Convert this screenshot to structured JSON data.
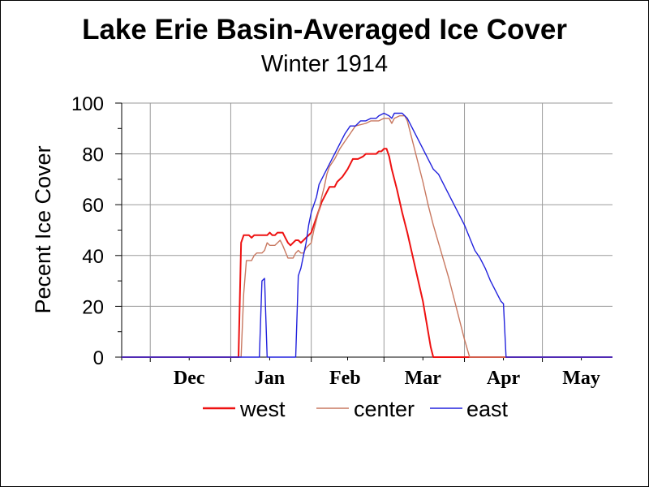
{
  "chart_data": {
    "type": "line",
    "title": "Lake Erie Basin-Averaged Ice Cover",
    "subtitle": "Winter 1914",
    "ylabel": "Pecent Ice Cover",
    "xlabel": "",
    "x_unit": "day",
    "x_range": [
      "Nov 20",
      "May 28"
    ],
    "ylim": [
      0,
      100
    ],
    "yticks": [
      "0",
      "20",
      "40",
      "60",
      "80",
      "100"
    ],
    "xtick_labels": [
      "Dec",
      "Jan",
      "Feb",
      "Mar",
      "Apr",
      "May"
    ],
    "grid": true,
    "legend_position": "bottom",
    "series": [
      {
        "name": "west",
        "color": "#ee1111",
        "points": [
          [
            "Nov 20",
            0
          ],
          [
            "Jan 4",
            0
          ],
          [
            "Jan 5",
            45
          ],
          [
            "Jan 6",
            48
          ],
          [
            "Jan 8",
            48
          ],
          [
            "Jan 9",
            47
          ],
          [
            "Jan 10",
            48
          ],
          [
            "Jan 15",
            48
          ],
          [
            "Jan 16",
            49
          ],
          [
            "Jan 17",
            48
          ],
          [
            "Jan 18",
            48
          ],
          [
            "Jan 19",
            49
          ],
          [
            "Jan 21",
            49
          ],
          [
            "Jan 22",
            47
          ],
          [
            "Jan 23",
            45
          ],
          [
            "Jan 24",
            44
          ],
          [
            "Jan 25",
            45
          ],
          [
            "Jan 26",
            46
          ],
          [
            "Jan 27",
            46
          ],
          [
            "Jan 28",
            45
          ],
          [
            "Jan 29",
            46
          ],
          [
            "Jan 30",
            47
          ],
          [
            "Jan 31",
            48
          ],
          [
            "Feb 1",
            49
          ],
          [
            "Feb 2",
            52
          ],
          [
            "Feb 3",
            55
          ],
          [
            "Feb 4",
            58
          ],
          [
            "Feb 5",
            61
          ],
          [
            "Feb 6",
            63
          ],
          [
            "Feb 7",
            65
          ],
          [
            "Feb 8",
            67
          ],
          [
            "Feb 10",
            67
          ],
          [
            "Feb 11",
            69
          ],
          [
            "Feb 13",
            71
          ],
          [
            "Feb 15",
            74
          ],
          [
            "Feb 17",
            78
          ],
          [
            "Feb 19",
            78
          ],
          [
            "Feb 21",
            79
          ],
          [
            "Feb 22",
            80
          ],
          [
            "Feb 26",
            80
          ],
          [
            "Feb 27",
            81
          ],
          [
            "Feb 28",
            81
          ],
          [
            "Mar 1",
            82
          ],
          [
            "Mar 2",
            82
          ],
          [
            "Mar 3",
            79
          ],
          [
            "Mar 4",
            74
          ],
          [
            "Mar 6",
            66
          ],
          [
            "Mar 8",
            57
          ],
          [
            "Mar 10",
            49
          ],
          [
            "Mar 12",
            40
          ],
          [
            "Mar 14",
            31
          ],
          [
            "Mar 16",
            22
          ],
          [
            "Mar 18",
            10
          ],
          [
            "Mar 19",
            4
          ],
          [
            "Mar 20",
            0
          ],
          [
            "May 28",
            0
          ]
        ]
      },
      {
        "name": "center",
        "color": "#c87860",
        "points": [
          [
            "Nov 20",
            0
          ],
          [
            "Jan 5",
            0
          ],
          [
            "Jan 6",
            25
          ],
          [
            "Jan 7",
            38
          ],
          [
            "Jan 9",
            38
          ],
          [
            "Jan 10",
            40
          ],
          [
            "Jan 11",
            41
          ],
          [
            "Jan 13",
            41
          ],
          [
            "Jan 14",
            42
          ],
          [
            "Jan 15",
            45
          ],
          [
            "Jan 16",
            44
          ],
          [
            "Jan 18",
            44
          ],
          [
            "Jan 19",
            45
          ],
          [
            "Jan 20",
            46
          ],
          [
            "Jan 21",
            44
          ],
          [
            "Jan 23",
            39
          ],
          [
            "Jan 25",
            39
          ],
          [
            "Jan 26",
            41
          ],
          [
            "Jan 27",
            42
          ],
          [
            "Jan 28",
            41
          ],
          [
            "Jan 29",
            41
          ],
          [
            "Jan 30",
            43
          ],
          [
            "Jan 31",
            44
          ],
          [
            "Feb 1",
            45
          ],
          [
            "Feb 2",
            50
          ],
          [
            "Feb 4",
            58
          ],
          [
            "Feb 5",
            63
          ],
          [
            "Feb 6",
            67
          ],
          [
            "Feb 7",
            72
          ],
          [
            "Feb 8",
            75
          ],
          [
            "Feb 10",
            78
          ],
          [
            "Feb 12",
            82
          ],
          [
            "Feb 14",
            85
          ],
          [
            "Feb 16",
            88
          ],
          [
            "Feb 18",
            91
          ],
          [
            "Feb 22",
            92
          ],
          [
            "Feb 24",
            93
          ],
          [
            "Feb 27",
            93
          ],
          [
            "Mar 1",
            94
          ],
          [
            "Mar 3",
            94
          ],
          [
            "Mar 4",
            92
          ],
          [
            "Mar 5",
            94
          ],
          [
            "Mar 7",
            95
          ],
          [
            "Mar 9",
            95
          ],
          [
            "Mar 10",
            93
          ],
          [
            "Mar 12",
            85
          ],
          [
            "Mar 14",
            77
          ],
          [
            "Mar 16",
            69
          ],
          [
            "Mar 18",
            60
          ],
          [
            "Mar 20",
            52
          ],
          [
            "Mar 22",
            45
          ],
          [
            "Mar 24",
            38
          ],
          [
            "Mar 26",
            31
          ],
          [
            "Mar 28",
            23
          ],
          [
            "Mar 30",
            15
          ],
          [
            "Apr 1",
            7
          ],
          [
            "Apr 3",
            0
          ],
          [
            "May 28",
            0
          ]
        ]
      },
      {
        "name": "east",
        "color": "#2222dd",
        "points": [
          [
            "Nov 20",
            0
          ],
          [
            "Jan 12",
            0
          ],
          [
            "Jan 13",
            30
          ],
          [
            "Jan 14",
            31
          ],
          [
            "Jan 15",
            0
          ],
          [
            "Jan 26",
            0
          ],
          [
            "Jan 27",
            32
          ],
          [
            "Jan 28",
            35
          ],
          [
            "Jan 29",
            40
          ],
          [
            "Jan 30",
            45
          ],
          [
            "Jan 31",
            52
          ],
          [
            "Feb 1",
            57
          ],
          [
            "Feb 2",
            60
          ],
          [
            "Feb 3",
            63
          ],
          [
            "Feb 4",
            68
          ],
          [
            "Feb 6",
            72
          ],
          [
            "Feb 8",
            76
          ],
          [
            "Feb 10",
            80
          ],
          [
            "Feb 12",
            84
          ],
          [
            "Feb 14",
            88
          ],
          [
            "Feb 16",
            91
          ],
          [
            "Feb 18",
            91
          ],
          [
            "Feb 20",
            93
          ],
          [
            "Feb 22",
            93
          ],
          [
            "Feb 24",
            94
          ],
          [
            "Feb 26",
            94
          ],
          [
            "Feb 27",
            95
          ],
          [
            "Mar 1",
            96
          ],
          [
            "Mar 3",
            95
          ],
          [
            "Mar 4",
            94
          ],
          [
            "Mar 5",
            96
          ],
          [
            "Mar 8",
            96
          ],
          [
            "Mar 10",
            94
          ],
          [
            "Mar 12",
            90
          ],
          [
            "Mar 14",
            86
          ],
          [
            "Mar 16",
            82
          ],
          [
            "Mar 18",
            78
          ],
          [
            "Mar 20",
            74
          ],
          [
            "Mar 22",
            72
          ],
          [
            "Mar 24",
            68
          ],
          [
            "Mar 26",
            64
          ],
          [
            "Mar 28",
            60
          ],
          [
            "Mar 30",
            56
          ],
          [
            "Apr 1",
            52
          ],
          [
            "Apr 3",
            47
          ],
          [
            "Apr 5",
            42
          ],
          [
            "Apr 7",
            39
          ],
          [
            "Apr 9",
            35
          ],
          [
            "Apr 11",
            30
          ],
          [
            "Apr 13",
            26
          ],
          [
            "Apr 15",
            22
          ],
          [
            "Apr 16",
            21
          ],
          [
            "Apr 17",
            0
          ],
          [
            "May 28",
            0
          ]
        ]
      }
    ]
  }
}
